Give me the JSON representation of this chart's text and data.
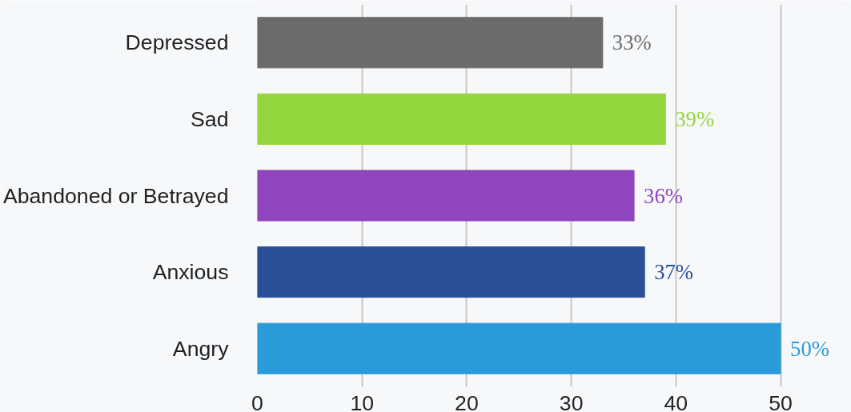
{
  "chart_data": {
    "type": "bar",
    "orientation": "horizontal",
    "categories": [
      "Depressed",
      "Sad",
      "Abandoned or Betrayed",
      "Anxious",
      "Angry"
    ],
    "values": [
      33,
      39,
      36,
      37,
      50
    ],
    "colors": [
      "#6b6b6b",
      "#94d63e",
      "#8e45bd",
      "#2a4f97",
      "#2a9bd8"
    ],
    "value_labels": [
      "33%",
      "39%",
      "36%",
      "37%",
      "50%"
    ],
    "xlim": [
      0,
      56
    ],
    "xticks": [
      0,
      10,
      20,
      30,
      40,
      50
    ],
    "grid": "x"
  }
}
